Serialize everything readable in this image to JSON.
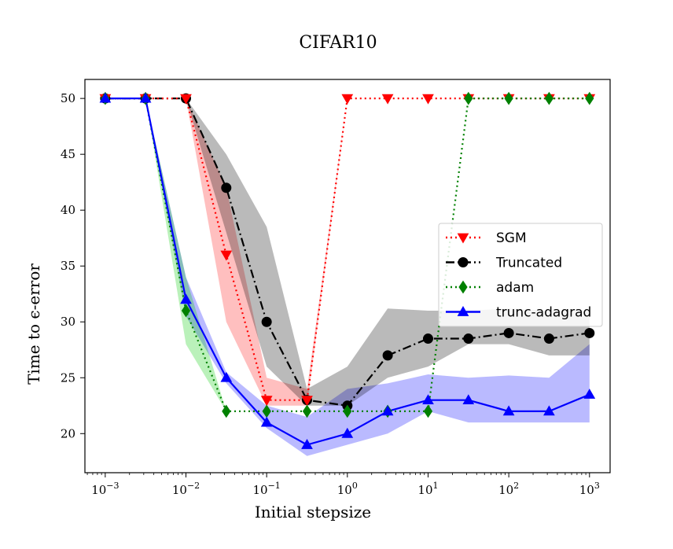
{
  "chart_data": {
    "type": "line",
    "title": "CIFAR10",
    "xlabel": "Initial stepsize",
    "ylabel": "Time to ϵ-error",
    "x_scale": "log",
    "xlim": [
      0.00056,
      1800
    ],
    "ylim": [
      16.5,
      51.7
    ],
    "x": [
      0.001,
      0.00316,
      0.01,
      0.0316,
      0.1,
      0.316,
      1,
      3.16,
      10,
      31.6,
      100,
      316,
      1000
    ],
    "x_ticks": [
      {
        "value": 0.001,
        "base": "10",
        "exp": "−3"
      },
      {
        "value": 0.01,
        "base": "10",
        "exp": "−2"
      },
      {
        "value": 0.1,
        "base": "10",
        "exp": "−1"
      },
      {
        "value": 1,
        "base": "10",
        "exp": "0"
      },
      {
        "value": 10,
        "base": "10",
        "exp": "1"
      },
      {
        "value": 100,
        "base": "10",
        "exp": "2"
      },
      {
        "value": 1000,
        "base": "10",
        "exp": "3"
      }
    ],
    "y_ticks": [
      20,
      25,
      30,
      35,
      40,
      45,
      50
    ],
    "grid": false,
    "legend_position": "center-right",
    "series": [
      {
        "name": "Truncated",
        "color": "#000000",
        "marker": "circle",
        "linestyle": "dashdot",
        "values": [
          50,
          50,
          50,
          42,
          30,
          23,
          22.5,
          27,
          28.5,
          28.5,
          29,
          28.5,
          29
        ],
        "band_low": [
          null,
          null,
          50,
          38,
          26,
          22.5,
          22.5,
          25,
          26,
          28,
          28,
          27,
          27
        ],
        "band_high": [
          null,
          null,
          50,
          45,
          38.5,
          24,
          26,
          31.2,
          31,
          31,
          31.2,
          31,
          31
        ]
      },
      {
        "name": "SGM",
        "color": "#ff0000",
        "marker": "triangle-down",
        "linestyle": "dotted",
        "values": [
          50,
          50,
          50,
          36,
          23,
          23,
          50,
          50,
          50,
          50,
          50,
          50,
          50
        ],
        "band_low": [
          null,
          null,
          50,
          30,
          22.5,
          22.5,
          50,
          50,
          null,
          null,
          null,
          null,
          null
        ],
        "band_high": [
          null,
          null,
          50,
          42,
          25,
          24,
          50,
          50,
          null,
          null,
          null,
          null,
          null
        ]
      },
      {
        "name": "adam",
        "color": "#008000",
        "marker": "diamond",
        "linestyle": "dotted",
        "values": [
          50,
          50,
          31,
          22,
          22,
          22,
          22,
          22,
          22,
          50,
          50,
          50,
          50
        ],
        "band_low": [
          null,
          50,
          28,
          22,
          22,
          22,
          22,
          22,
          22,
          null,
          null,
          null,
          null
        ],
        "band_high": [
          null,
          50,
          34,
          22,
          22,
          22,
          22,
          22,
          22,
          null,
          null,
          null,
          null
        ]
      },
      {
        "name": "trunc-adagrad",
        "color": "#0000ff",
        "marker": "triangle-up",
        "linestyle": "solid",
        "values": [
          50,
          50,
          32,
          25,
          21,
          19,
          20,
          22,
          23,
          23,
          22,
          22,
          23.5
        ],
        "band_low": [
          null,
          50,
          30.5,
          24.5,
          20.5,
          18,
          19,
          20,
          22,
          21,
          21,
          21,
          21
        ],
        "band_high": [
          null,
          50,
          34,
          25.5,
          22.5,
          21.5,
          24,
          24.5,
          25.3,
          25,
          25.2,
          25,
          28
        ]
      }
    ],
    "bands": [
      {
        "series": "trunc-adagrad",
        "fill": "#0000ff",
        "opacity": 0.27
      },
      {
        "series": "adam",
        "fill": "#00cc00",
        "opacity": 0.27
      },
      {
        "series": "SGM",
        "fill": "#ff0000",
        "opacity": 0.25
      },
      {
        "series": "Truncated",
        "fill": "#000000",
        "opacity": 0.27
      }
    ],
    "line_order": [
      "Truncated",
      "SGM",
      "adam",
      "trunc-adagrad"
    ],
    "legend_order": [
      "SGM",
      "Truncated",
      "adam",
      "trunc-adagrad"
    ]
  }
}
